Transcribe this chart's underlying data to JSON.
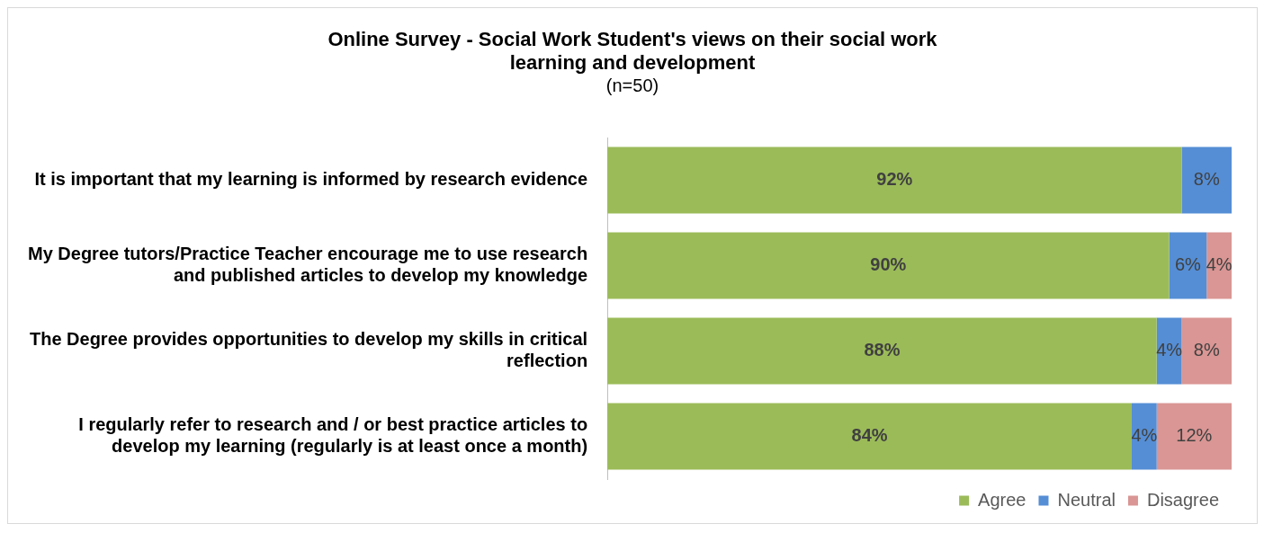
{
  "chart_data": {
    "type": "bar",
    "orientation": "horizontal",
    "stacked": true,
    "title": "Online Survey - Social Work Student's views on their social work learning and development",
    "subtitle": "(n=50)",
    "categories": [
      "It is important that my learning is informed by research evidence",
      "My Degree tutors/Practice Teacher encourage me to use research and published articles to develop my knowledge",
      "The Degree provides opportunities to develop my skills in critical reflection",
      "I regularly refer to research and / or best practice articles to develop my learning (regularly is at least once a month)"
    ],
    "series": [
      {
        "name": "Agree",
        "color": "#9bbb59",
        "values": [
          92,
          90,
          88,
          84
        ],
        "value_labels": [
          "92%",
          "90%",
          "88%",
          "84%"
        ]
      },
      {
        "name": "Neutral",
        "color": "#558ed5",
        "values": [
          8,
          6,
          4,
          4
        ],
        "value_labels": [
          "8%",
          "6%",
          "4%",
          "4%"
        ]
      },
      {
        "name": "Disagree",
        "color": "#d99694",
        "values": [
          0,
          4,
          8,
          12
        ],
        "value_labels": [
          null,
          "4%",
          "8%",
          "12%"
        ]
      }
    ],
    "legend": "bottom right",
    "grid": false
  }
}
